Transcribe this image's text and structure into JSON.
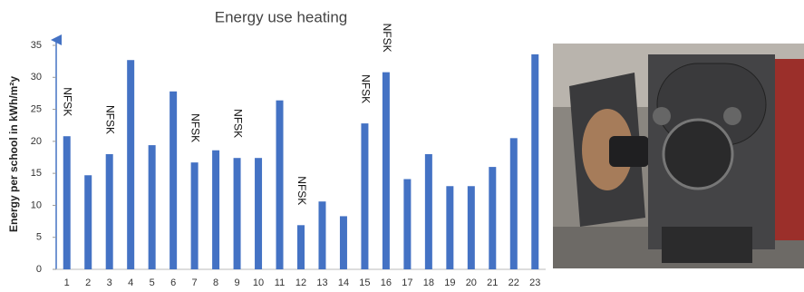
{
  "chart_data": {
    "type": "bar",
    "title": "Energy use heating",
    "y_label": "Energy per school in kWh/m²y",
    "categories": [
      "1",
      "2",
      "3",
      "4",
      "5",
      "6",
      "7",
      "8",
      "9",
      "10",
      "11",
      "12",
      "13",
      "14",
      "15",
      "16",
      "17",
      "18",
      "19",
      "20",
      "21",
      "22",
      "23"
    ],
    "values": [
      20.8,
      14.7,
      18,
      32.7,
      19.4,
      27.8,
      16.7,
      18.6,
      17.4,
      17.4,
      26.4,
      6.9,
      10.6,
      8.3,
      22.8,
      30.8,
      14.1,
      18,
      13,
      13,
      16,
      20.5,
      33.6
    ],
    "color": "#4472c4",
    "ylim": [
      0,
      35
    ],
    "yticks": [
      0,
      5,
      10,
      15,
      20,
      25,
      30,
      35
    ],
    "grid": false,
    "annotations": [
      {
        "text": "NFSK",
        "x": "1"
      },
      {
        "text": "NFSK",
        "x": "3"
      },
      {
        "text": "NFSK",
        "x": "7"
      },
      {
        "text": "NFSK",
        "x": "9"
      },
      {
        "text": "NFSK",
        "x": "12"
      },
      {
        "text": "NFSK",
        "x": "15"
      },
      {
        "text": "NFSK",
        "x": "16"
      }
    ]
  }
}
